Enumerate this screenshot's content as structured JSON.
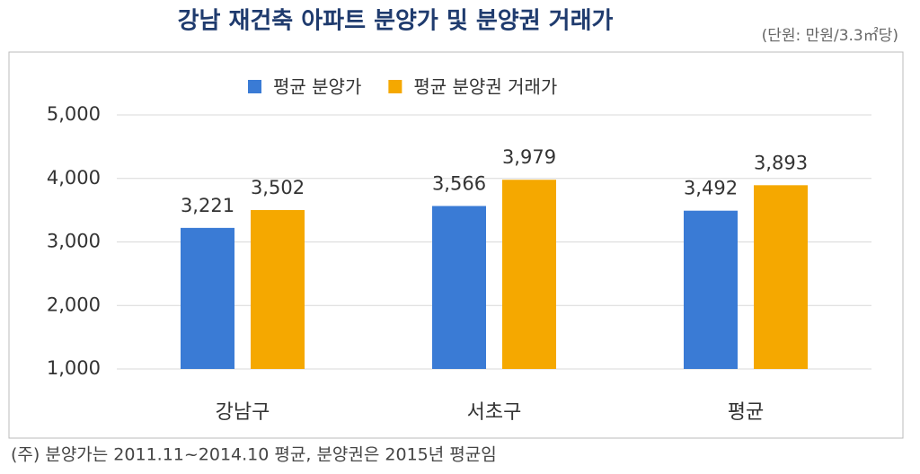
{
  "chart_data": {
    "type": "bar",
    "title": "강남 재건축 아파트 분양가 및 분양권 거래가",
    "subtitle": "(단원: 만원/3.3㎡당)",
    "footnote": "(주) 분양가는 2011.11~2014.10 평균, 분양권은 2015년 평균임",
    "categories": [
      "강남구",
      "서초구",
      "평균"
    ],
    "series": [
      {
        "name": "평균 분양가",
        "color": "#3a7bd5",
        "values": [
          3221,
          3566,
          3492
        ],
        "value_labels": [
          "3,221",
          "3,566",
          "3,492"
        ]
      },
      {
        "name": "평균 분양권 거래가",
        "color": "#f5a800",
        "values": [
          3502,
          3979,
          3893
        ],
        "value_labels": [
          "3,502",
          "3,979",
          "3,893"
        ]
      }
    ],
    "ylim": [
      1000,
      5000
    ],
    "yticks": [
      {
        "value": 1000,
        "label": "1,000"
      },
      {
        "value": 2000,
        "label": "2,000"
      },
      {
        "value": 3000,
        "label": "3,000"
      },
      {
        "value": 4000,
        "label": "4,000"
      },
      {
        "value": 5000,
        "label": "5,000"
      }
    ],
    "grid": true,
    "legend": "top"
  }
}
